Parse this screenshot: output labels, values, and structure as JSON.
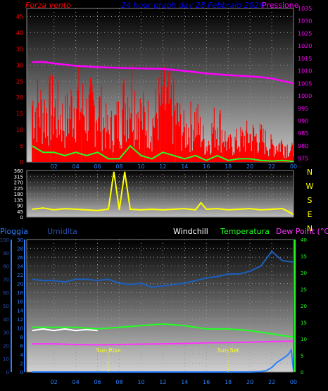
{
  "texts": {
    "wind_title": "Forza vento",
    "graph_title": "24 hour graph day  28 Febbraio 2024",
    "pressure_title": "Pressione",
    "rain_label": "Pioggia",
    "humidity_label": "Umidita",
    "windchill_label": "Windchill",
    "temperature_label": "Temperatura",
    "dewpoint_label": "Dew Point (°C)",
    "sunrise_label": "Sun Rise",
    "sunset_label": "Sun Set"
  },
  "colors": {
    "wind": "#ff0000",
    "wind_avg": "#22ff22",
    "pressure": "#ff00ff",
    "title": "#0000ff",
    "wind_dir": "#ffff00",
    "rain": "#2a7fff",
    "humidity": "#2a4fa8",
    "hum_line": "#1a5fc0",
    "windchill": "#ffffff",
    "temperature": "#22ff22",
    "dewpoint": "#ff33ff",
    "sun": "#ffff00",
    "time_axis": "#2a7fff"
  },
  "chart_data": [
    {
      "type": "line",
      "name": "wind-pressure",
      "x_ticks": [
        "02",
        "04",
        "06",
        "08",
        "10",
        "12",
        "14",
        "16",
        "18",
        "20",
        "22",
        "00"
      ],
      "left_axis": {
        "ticks": [
          0,
          5,
          10,
          15,
          20,
          25,
          30,
          35,
          40,
          45
        ],
        "ylim": [
          0,
          47.5
        ]
      },
      "right_axis": {
        "ticks": [
          975,
          980,
          985,
          990,
          995,
          1000,
          1005,
          1010,
          1015,
          1020,
          1025,
          1030,
          1035
        ],
        "ylim": [
          973.5,
          1035
        ]
      },
      "series": [
        {
          "name": "Forza vento",
          "axis": "left",
          "x": [
            0,
            1,
            2,
            3,
            4,
            5,
            6,
            7,
            8,
            9,
            10,
            11,
            12,
            13,
            14,
            15,
            16,
            17,
            18,
            19,
            20,
            21,
            22,
            23,
            24
          ],
          "values": [
            22,
            19,
            20,
            15,
            24,
            18,
            21,
            11,
            16,
            28,
            17,
            14,
            24,
            19,
            11,
            16,
            6,
            16,
            6,
            8,
            10,
            9,
            6,
            7,
            4
          ]
        },
        {
          "name": "wind average",
          "axis": "left",
          "x": [
            0,
            1,
            2,
            3,
            4,
            5,
            6,
            7,
            8,
            9,
            10,
            11,
            12,
            13,
            14,
            15,
            16,
            17,
            18,
            19,
            20,
            21,
            22,
            23,
            24
          ],
          "values": [
            5,
            3,
            3,
            2,
            3,
            2,
            3,
            1,
            1,
            5,
            2,
            1,
            3,
            2,
            1,
            2,
            0.5,
            2,
            0.5,
            1,
            1,
            0.5,
            0.3,
            0.5,
            0.2
          ]
        },
        {
          "name": "Pressione",
          "axis": "right",
          "x": [
            0,
            1,
            2,
            4,
            6,
            8,
            10,
            12,
            14,
            16,
            18,
            20,
            21,
            22,
            23,
            24
          ],
          "values": [
            1013.5,
            1013.6,
            1013,
            1012,
            1011.5,
            1011.2,
            1011,
            1010.8,
            1010,
            1009,
            1008.3,
            1007.8,
            1007.5,
            1007,
            1006,
            1005
          ]
        }
      ]
    },
    {
      "type": "scatter",
      "name": "wind-direction",
      "left_axis": {
        "ticks": [
          0,
          45,
          90,
          135,
          180,
          225,
          270,
          315,
          360
        ],
        "ylim": [
          0,
          360
        ]
      },
      "right_labels": [
        "N",
        "W",
        "S",
        "E",
        "N"
      ],
      "series": [
        {
          "name": "wind direction",
          "x": [
            0,
            1,
            2,
            3,
            4,
            5,
            6,
            7,
            7.5,
            8,
            8.5,
            9,
            10,
            11,
            12,
            13,
            14,
            15,
            15.5,
            16,
            17,
            18,
            19,
            20,
            21,
            22,
            23,
            24
          ],
          "values": [
            60,
            70,
            55,
            65,
            60,
            55,
            50,
            60,
            350,
            55,
            350,
            60,
            55,
            60,
            55,
            60,
            65,
            55,
            110,
            60,
            65,
            55,
            60,
            65,
            55,
            60,
            65,
            20
          ]
        }
      ]
    },
    {
      "type": "line",
      "name": "rain-humidity-temperature",
      "x_ticks": [
        "02",
        "04",
        "06",
        "08",
        "10",
        "12",
        "14",
        "16",
        "18",
        "20",
        "22",
        "00"
      ],
      "left_axis_1": {
        "ticks": [
          0,
          10,
          20,
          30,
          40,
          50,
          60,
          70,
          80,
          90,
          100
        ],
        "ylim": [
          0,
          100
        ]
      },
      "left_axis_2": {
        "ticks": [
          0,
          2,
          4,
          6,
          8,
          10,
          12,
          14,
          16,
          18,
          20,
          22,
          24,
          26,
          28,
          30
        ],
        "ylim": [
          0,
          30
        ]
      },
      "right_axis": {
        "ticks": [
          0,
          5,
          10,
          15,
          20,
          25,
          30,
          35,
          40
        ],
        "ylim": [
          0,
          40
        ]
      },
      "series": [
        {
          "name": "Umidita",
          "axis": "left_1",
          "x": [
            0,
            1,
            2,
            3,
            4,
            5,
            6,
            7,
            8,
            9,
            10,
            11,
            12,
            13,
            14,
            15,
            16,
            17,
            18,
            19,
            20,
            21,
            22,
            23,
            24
          ],
          "values": [
            70,
            69,
            69,
            68,
            70,
            70,
            69,
            70,
            67,
            66,
            67,
            64,
            65,
            66,
            67,
            69,
            71,
            72,
            74,
            74,
            76,
            80,
            91,
            84,
            83
          ]
        },
        {
          "name": "Temperatura",
          "axis": "right",
          "x": [
            0,
            2,
            4,
            6,
            8,
            10,
            12,
            14,
            16,
            18,
            20,
            22,
            23,
            24
          ],
          "values": [
            13.5,
            13.5,
            13.5,
            13,
            13.5,
            14,
            14.5,
            14,
            13,
            13,
            12.5,
            11.5,
            11,
            10.5
          ]
        },
        {
          "name": "Windchill",
          "axis": "right",
          "x": [
            0,
            1,
            2,
            3,
            4,
            5,
            6
          ],
          "values": [
            12.5,
            13,
            12.5,
            13,
            12.5,
            12.8,
            12.5
          ]
        },
        {
          "name": "Dew Point",
          "axis": "right",
          "x": [
            0,
            2,
            4,
            6,
            8,
            10,
            12,
            14,
            16,
            18,
            20,
            22,
            24
          ],
          "values": [
            8.5,
            8.5,
            8.3,
            8.2,
            8.3,
            8.4,
            8.5,
            8.6,
            8.8,
            8.9,
            9,
            9.2,
            9.3
          ]
        },
        {
          "name": "Pioggia",
          "axis": "left_2",
          "x": [
            0,
            1,
            2,
            3,
            4,
            5,
            6,
            7,
            8,
            9,
            10,
            11,
            12,
            13,
            14,
            15,
            16,
            17,
            18,
            19,
            20,
            21,
            21.5,
            22,
            22.5,
            23,
            23.5,
            23.8,
            24
          ],
          "values": [
            0,
            0,
            0,
            0,
            0,
            0,
            0,
            0,
            0,
            0,
            0,
            0,
            0,
            0,
            0,
            0,
            0,
            0,
            0,
            0,
            0,
            0.1,
            0.3,
            1,
            2.2,
            3,
            3.9,
            5,
            0.3
          ]
        }
      ],
      "markers": [
        {
          "label": "Sun Rise",
          "x": 7
        },
        {
          "label": "Sun Set",
          "x": 18
        }
      ]
    }
  ]
}
